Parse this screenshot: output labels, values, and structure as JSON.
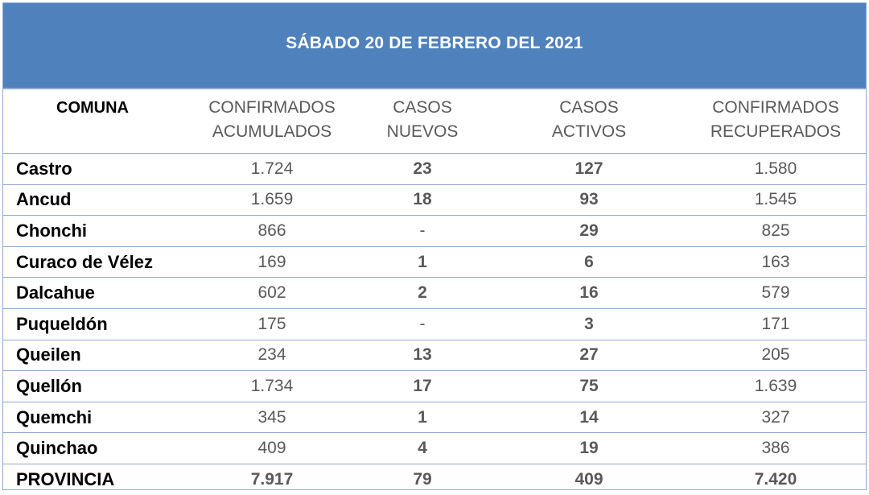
{
  "title": "SÁBADO 20 DE FEBRERO DEL 2021",
  "colors": {
    "header_bg": "#4f81bd",
    "header_text": "#ffffff",
    "grid_lines": "#8eaad6",
    "value_text": "#595959",
    "name_text": "#000000"
  },
  "columns": [
    {
      "line1": "COMUNA",
      "line2": ""
    },
    {
      "line1": "CONFIRMADOS",
      "line2": "ACUMULADOS"
    },
    {
      "line1": "CASOS NUEVOS",
      "line2": ""
    },
    {
      "line1": "CASOS",
      "line2": "ACTIVOS"
    },
    {
      "line1": "CONFIRMADOS",
      "line2": "RECUPERADOS"
    }
  ],
  "rows": [
    {
      "comuna": "Castro",
      "acumulados": "1.724",
      "nuevos": "23",
      "activos": "127",
      "recuperados": "1.580"
    },
    {
      "comuna": "Ancud",
      "acumulados": "1.659",
      "nuevos": "18",
      "activos": "93",
      "recuperados": "1.545"
    },
    {
      "comuna": "Chonchi",
      "acumulados": "866",
      "nuevos": "-",
      "activos": "29",
      "recuperados": "825"
    },
    {
      "comuna": "Curaco de Vélez",
      "acumulados": "169",
      "nuevos": "1",
      "activos": "6",
      "recuperados": "163"
    },
    {
      "comuna": "Dalcahue",
      "acumulados": "602",
      "nuevos": "2",
      "activos": "16",
      "recuperados": "579"
    },
    {
      "comuna": "Puqueldón",
      "acumulados": "175",
      "nuevos": "-",
      "activos": "3",
      "recuperados": "171"
    },
    {
      "comuna": "Queilen",
      "acumulados": "234",
      "nuevos": "13",
      "activos": "27",
      "recuperados": "205"
    },
    {
      "comuna": "Quellón",
      "acumulados": "1.734",
      "nuevos": "17",
      "activos": "75",
      "recuperados": "1.639"
    },
    {
      "comuna": "Quemchi",
      "acumulados": "345",
      "nuevos": "1",
      "activos": "14",
      "recuperados": "327"
    },
    {
      "comuna": "Quinchao",
      "acumulados": "409",
      "nuevos": "4",
      "activos": "19",
      "recuperados": "386"
    }
  ],
  "total": {
    "comuna": "PROVINCIA",
    "acumulados": "7.917",
    "nuevos": "79",
    "activos": "409",
    "recuperados": "7.420"
  }
}
